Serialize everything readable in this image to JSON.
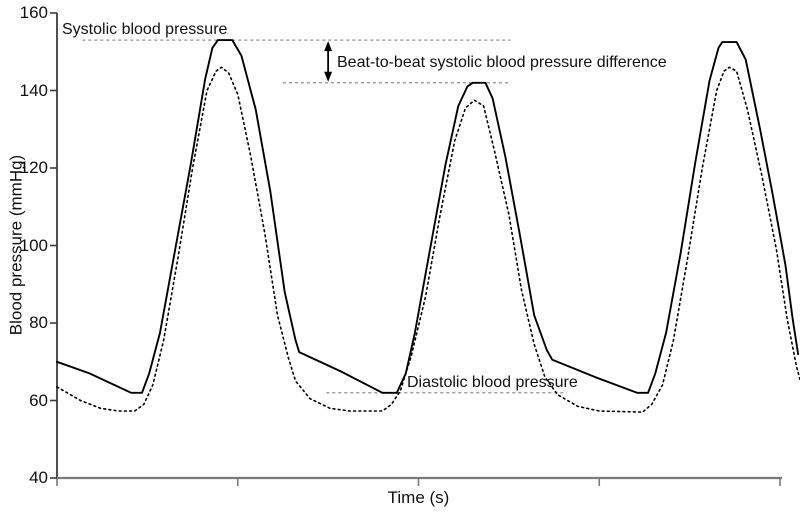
{
  "figure": {
    "background": "#ffffff",
    "colors": {
      "curve": "#000000",
      "y_axis": "#3c3c3c",
      "x_axis": "#7a7a7a",
      "annotation_line": "#8f8f8f",
      "text": "#111111"
    }
  },
  "chart_data": {
    "type": "line",
    "title": "",
    "xlabel": "Time (s)",
    "ylabel": "Blood pressure (mmHg)",
    "ylim": [
      40,
      160
    ],
    "yticks": [
      160,
      140,
      120,
      100,
      80,
      60,
      40
    ],
    "xlim": [
      0,
      4.11
    ],
    "xticks": [
      0,
      1,
      2,
      3,
      4
    ],
    "xtick_labels_shown": false,
    "grid": false,
    "legend_position": "none",
    "series": [
      {
        "name": "arterial pressure wave (solid, beat n)",
        "style": "solid",
        "points": [
          [
            0.0,
            70
          ],
          [
            0.18,
            67
          ],
          [
            0.41,
            62
          ],
          [
            0.47,
            62
          ],
          [
            0.51,
            67
          ],
          [
            0.57,
            77.5
          ],
          [
            0.65,
            98
          ],
          [
            0.74,
            121
          ],
          [
            0.82,
            143
          ],
          [
            0.86,
            151
          ],
          [
            0.89,
            153
          ],
          [
            0.97,
            153
          ],
          [
            1.02,
            149
          ],
          [
            1.1,
            135
          ],
          [
            1.18,
            114
          ],
          [
            1.26,
            88
          ],
          [
            1.32,
            75.5
          ],
          [
            1.34,
            72.5
          ],
          [
            1.57,
            67.5
          ],
          [
            1.8,
            62
          ],
          [
            1.88,
            62
          ],
          [
            1.93,
            67
          ],
          [
            1.98,
            77.5
          ],
          [
            2.06,
            98
          ],
          [
            2.15,
            121
          ],
          [
            2.22,
            136
          ],
          [
            2.27,
            141
          ],
          [
            2.3,
            142
          ],
          [
            2.37,
            142
          ],
          [
            2.41,
            138
          ],
          [
            2.48,
            123
          ],
          [
            2.56,
            103
          ],
          [
            2.64,
            82
          ],
          [
            2.71,
            73
          ],
          [
            2.74,
            70.5
          ],
          [
            2.98,
            66
          ],
          [
            3.21,
            62
          ],
          [
            3.27,
            62
          ],
          [
            3.31,
            67
          ],
          [
            3.37,
            77.5
          ],
          [
            3.45,
            98
          ],
          [
            3.53,
            121
          ],
          [
            3.61,
            142.5
          ],
          [
            3.66,
            151
          ],
          [
            3.68,
            152.5
          ],
          [
            3.76,
            152.5
          ],
          [
            3.81,
            148
          ],
          [
            3.89,
            130
          ],
          [
            3.96,
            113
          ],
          [
            4.03,
            95
          ],
          [
            4.07,
            81
          ],
          [
            4.1,
            72
          ]
        ]
      },
      {
        "name": "arterial pressure wave (dotted, beat n+1)",
        "style": "dotted",
        "points": [
          [
            0.0,
            63.5
          ],
          [
            0.13,
            60
          ],
          [
            0.24,
            58
          ],
          [
            0.34,
            57.3
          ],
          [
            0.43,
            57.3
          ],
          [
            0.48,
            59
          ],
          [
            0.53,
            64
          ],
          [
            0.59,
            75.5
          ],
          [
            0.67,
            97
          ],
          [
            0.75,
            120
          ],
          [
            0.83,
            140
          ],
          [
            0.88,
            145
          ],
          [
            0.91,
            146
          ],
          [
            0.95,
            144.5
          ],
          [
            1.0,
            139
          ],
          [
            1.07,
            123.5
          ],
          [
            1.15,
            103
          ],
          [
            1.22,
            82
          ],
          [
            1.28,
            71
          ],
          [
            1.32,
            65
          ],
          [
            1.4,
            60.5
          ],
          [
            1.51,
            58
          ],
          [
            1.62,
            57.3
          ],
          [
            1.8,
            57.3
          ],
          [
            1.85,
            59
          ],
          [
            1.9,
            62.5
          ],
          [
            1.96,
            71.5
          ],
          [
            2.04,
            87
          ],
          [
            2.12,
            108
          ],
          [
            2.2,
            127
          ],
          [
            2.26,
            135.5
          ],
          [
            2.31,
            137.5
          ],
          [
            2.36,
            136
          ],
          [
            2.42,
            124.5
          ],
          [
            2.5,
            108
          ],
          [
            2.57,
            88.5
          ],
          [
            2.64,
            74.5
          ],
          [
            2.7,
            66
          ],
          [
            2.77,
            61.5
          ],
          [
            2.88,
            58.5
          ],
          [
            3.0,
            57.3
          ],
          [
            3.24,
            57
          ],
          [
            3.29,
            59
          ],
          [
            3.35,
            64
          ],
          [
            3.41,
            75.5
          ],
          [
            3.49,
            97
          ],
          [
            3.57,
            120
          ],
          [
            3.65,
            140
          ],
          [
            3.69,
            145
          ],
          [
            3.72,
            146
          ],
          [
            3.76,
            145
          ],
          [
            3.82,
            135
          ],
          [
            3.9,
            118
          ],
          [
            3.98,
            99
          ],
          [
            4.04,
            81
          ],
          [
            4.09,
            69
          ],
          [
            4.11,
            65.5
          ]
        ]
      }
    ],
    "annotations": {
      "systolic": {
        "label": "Systolic blood pressure",
        "value_mmHg": 153,
        "line_t": [
          0.14,
          2.51
        ]
      },
      "beat_to_beat": {
        "label": "Beat-to-beat systolic blood pressure difference",
        "upper_mmHg": 153,
        "lower_mmHg": 142,
        "difference_mmHg": 11,
        "line_t": [
          1.25,
          2.51
        ],
        "arrow_t": 1.5
      },
      "diastolic": {
        "label": "Diastolic blood pressure",
        "value_mmHg": 62,
        "line_t": [
          1.49,
          2.82
        ]
      }
    }
  }
}
